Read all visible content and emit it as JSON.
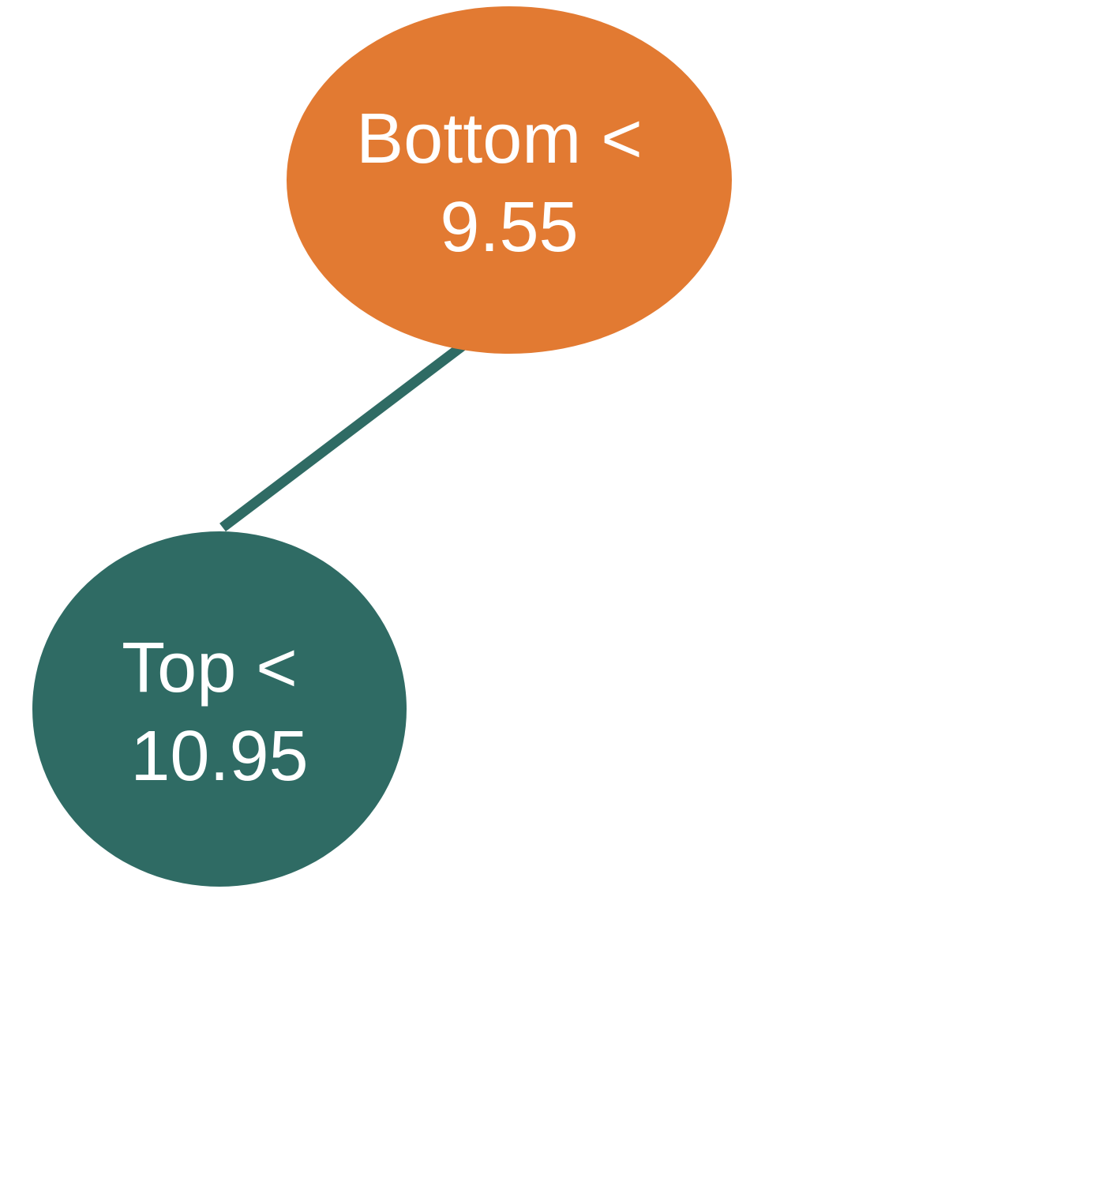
{
  "diagram": {
    "type": "decision-tree",
    "colors": {
      "root_fill": "#E27A32",
      "child_fill": "#2F6B64",
      "edge": "#2F6B64",
      "label_text": "#FFFFFF"
    },
    "nodes": [
      {
        "id": "root",
        "line1": "Bottom <",
        "line2": "9.55"
      },
      {
        "id": "left-child",
        "line1": "Top <",
        "line2": "10.95"
      }
    ],
    "edges": [
      {
        "from": "root",
        "to": "left-child"
      }
    ]
  }
}
